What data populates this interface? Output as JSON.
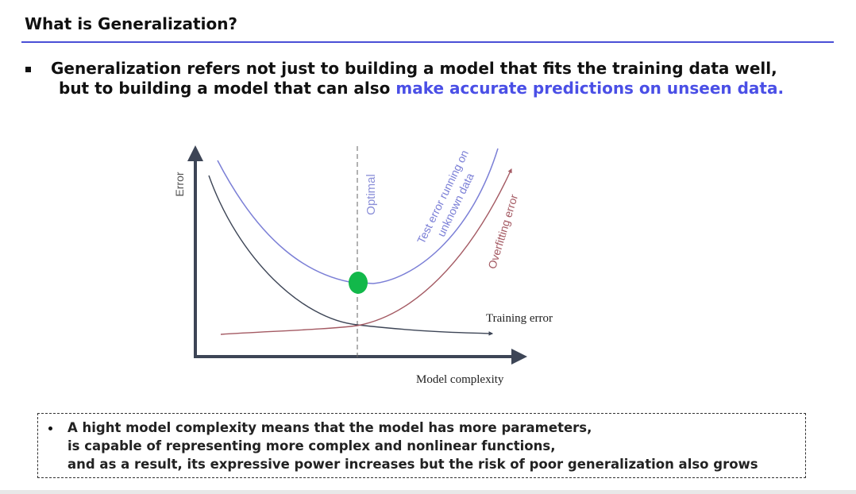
{
  "slide": {
    "title": "What is Generalization?"
  },
  "main_point": {
    "line1": "Generalization refers not just to building a model that fits the training data well,",
    "line2_plain": "but to building a model that can also ",
    "line2_highlight": "make accurate predictions on unseen data."
  },
  "diagram": {
    "y_axis_label": "Error",
    "x_axis_label": "Model complexity",
    "optimal_label": "Optimal",
    "test_error_label_line1": "Test error running on",
    "test_error_label_line2": "unknown data",
    "overfitting_label": "Overfitting error",
    "training_error_label": "Training error",
    "colors": {
      "axis": "#3d4556",
      "test_curve": "#7b7fd6",
      "training_curve": "#3d4556",
      "overfitting_curve": "#a45a63",
      "optimal_line": "#666666",
      "optimal_point": "#12b84a"
    }
  },
  "note": {
    "line1": "A hight model complexity means that the model has more parameters,",
    "line2": "is capable of representing more complex and nonlinear functions,",
    "line3": "and as a result, its expressive power increases but the risk of poor generalization also grows"
  }
}
